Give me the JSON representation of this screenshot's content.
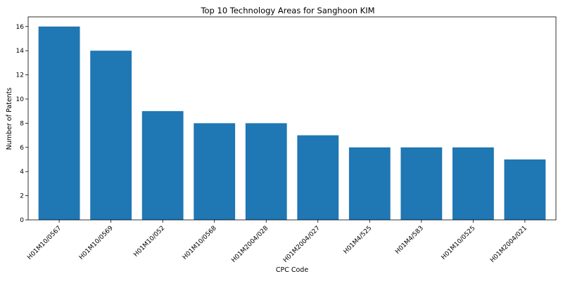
{
  "chart_data": {
    "type": "bar",
    "title": "Top 10 Technology Areas for Sanghoon KIM",
    "xlabel": "CPC Code",
    "ylabel": "Number of Patents",
    "categories": [
      "H01M10/0567",
      "H01M10/0569",
      "H01M10/052",
      "H01M10/0568",
      "H01M2004/028",
      "H01M2004/027",
      "H01M4/525",
      "H01M4/583",
      "H01M10/0525",
      "H01M2004/021"
    ],
    "values": [
      16,
      14,
      9,
      8,
      8,
      7,
      6,
      6,
      6,
      5
    ],
    "ylim": [
      0,
      16.8
    ],
    "yticks": [
      0,
      2,
      4,
      6,
      8,
      10,
      12,
      14,
      16
    ],
    "bar_color": "#1f77b4",
    "grid": false,
    "legend": "none"
  }
}
